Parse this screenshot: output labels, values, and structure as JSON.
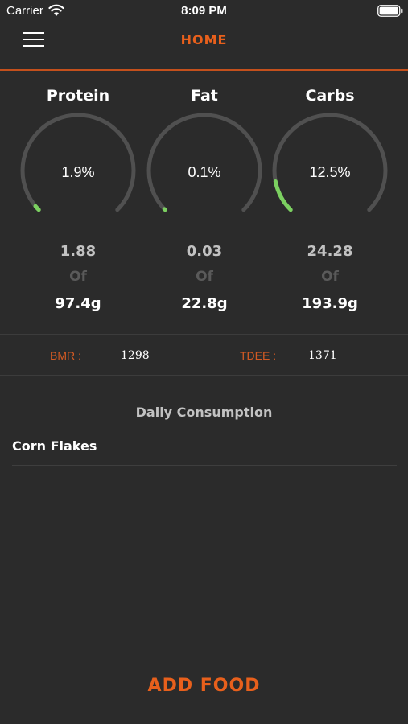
{
  "status_bar": {
    "carrier": "Carrier",
    "time": "8:09 PM",
    "wifi_icon": "wifi-icon",
    "battery_icon": "battery-icon"
  },
  "nav": {
    "menu_icon": "hamburger-menu-icon",
    "title": "HOME"
  },
  "colors": {
    "background": "#2b2b2b",
    "accent": "#e8601c",
    "gauge_track": "#505050",
    "gauge_fill": "#7bd060"
  },
  "macros": [
    {
      "name": "Protein",
      "percent_label": "1.9%",
      "percent": 1.9,
      "consumed": "1.88",
      "of_label": "Of",
      "target": "97.4g"
    },
    {
      "name": "Fat",
      "percent_label": "0.1%",
      "percent": 0.1,
      "consumed": "0.03",
      "of_label": "Of",
      "target": "22.8g"
    },
    {
      "name": "Carbs",
      "percent_label": "12.5%",
      "percent": 12.5,
      "consumed": "24.28",
      "of_label": "Of",
      "target": "193.9g"
    }
  ],
  "stats": {
    "bmr_label": "BMR :",
    "bmr_value": "1298",
    "tdee_label": "TDEE :",
    "tdee_value": "1371"
  },
  "daily_consumption": {
    "title": "Daily Consumption",
    "items": [
      {
        "name": "Corn Flakes"
      }
    ]
  },
  "actions": {
    "add_food_label": "ADD FOOD"
  }
}
